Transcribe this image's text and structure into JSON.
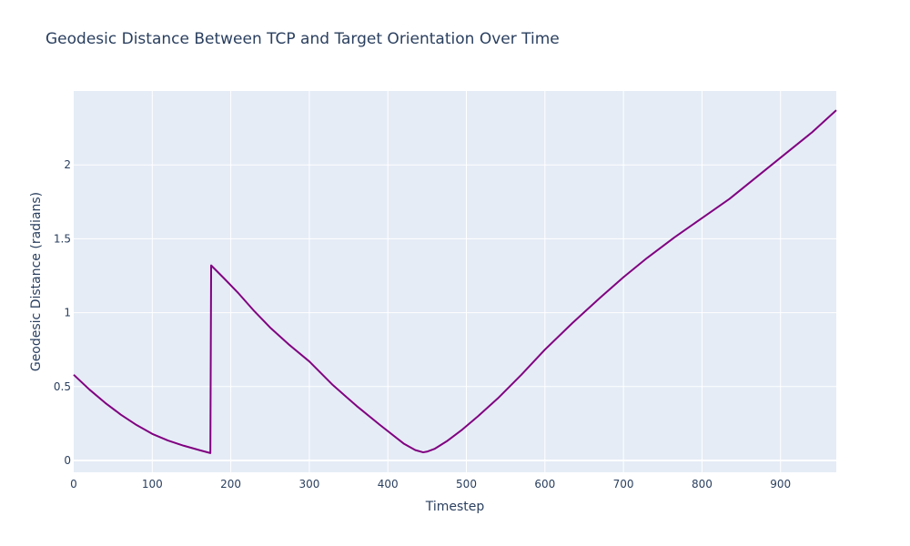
{
  "chart_data": {
    "type": "line",
    "title": "Geodesic Distance Between TCP and Target Orientation Over Time",
    "xlabel": "Timestep",
    "ylabel": "Geodesic Distance (radians)",
    "xlim": [
      0,
      971
    ],
    "ylim": [
      -0.08,
      2.5
    ],
    "x_ticks": [
      0,
      100,
      200,
      300,
      400,
      500,
      600,
      700,
      800,
      900
    ],
    "y_ticks": [
      0,
      0.5,
      1,
      1.5,
      2
    ],
    "grid": true,
    "legend": "none",
    "colors": {
      "plot_bg": "#e5ecf6",
      "grid": "#ffffff",
      "line": "#800080",
      "text": "#2a3f5f"
    },
    "series": [
      {
        "x": [
          0,
          10,
          20,
          40,
          60,
          80,
          100,
          120,
          140,
          160,
          174,
          175,
          190,
          210,
          230,
          250,
          275,
          300,
          330,
          360,
          390,
          420,
          435,
          445,
          450,
          460,
          475,
          495,
          515,
          540,
          570,
          600,
          635,
          670,
          700,
          730,
          765,
          800,
          835,
          870,
          905,
          940,
          971
        ],
        "y": [
          0.58,
          0.53,
          0.48,
          0.39,
          0.31,
          0.24,
          0.18,
          0.135,
          0.1,
          0.07,
          0.05,
          1.32,
          1.24,
          1.13,
          1.01,
          0.9,
          0.78,
          0.67,
          0.51,
          0.37,
          0.24,
          0.115,
          0.07,
          0.055,
          0.06,
          0.08,
          0.13,
          0.21,
          0.3,
          0.42,
          0.58,
          0.75,
          0.93,
          1.1,
          1.24,
          1.37,
          1.51,
          1.64,
          1.77,
          1.92,
          2.07,
          2.22,
          2.37
        ]
      }
    ]
  }
}
